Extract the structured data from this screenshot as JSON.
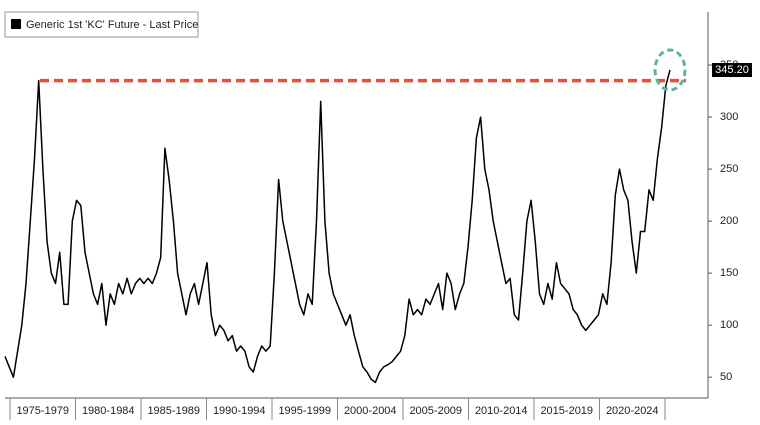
{
  "chart_data": {
    "type": "line",
    "legend": "Generic 1st 'KC' Future - Last Price",
    "period_labels": [
      "1975-1979",
      "1980-1984",
      "1985-1989",
      "1990-1994",
      "1995-1999",
      "2000-2004",
      "2005-2009",
      "2010-2014",
      "2015-2019",
      "2020-2024"
    ],
    "color": "#000000",
    "values": [
      70,
      60,
      50,
      75,
      100,
      140,
      200,
      260,
      335,
      250,
      180,
      150,
      140,
      170,
      120,
      120,
      200,
      220,
      215,
      170,
      150,
      130,
      120,
      140,
      100,
      130,
      120,
      140,
      130,
      145,
      130,
      140,
      145,
      140,
      145,
      140,
      150,
      165,
      270,
      240,
      200,
      150,
      130,
      110,
      130,
      140,
      120,
      140,
      160,
      110,
      90,
      100,
      95,
      85,
      90,
      75,
      80,
      75,
      60,
      55,
      70,
      80,
      75,
      80,
      150,
      240,
      200,
      180,
      160,
      140,
      120,
      110,
      130,
      120,
      200,
      315,
      200,
      150,
      130,
      120,
      110,
      100,
      110,
      90,
      75,
      60,
      55,
      48,
      45,
      55,
      60,
      62,
      65,
      70,
      75,
      90,
      125,
      110,
      115,
      110,
      125,
      120,
      130,
      140,
      115,
      150,
      140,
      115,
      130,
      140,
      175,
      220,
      280,
      300,
      250,
      230,
      200,
      180,
      160,
      140,
      145,
      110,
      105,
      150,
      200,
      220,
      180,
      130,
      120,
      140,
      125,
      160,
      140,
      135,
      130,
      115,
      110,
      100,
      95,
      100,
      105,
      110,
      130,
      120,
      160,
      225,
      250,
      230,
      220,
      180,
      150,
      190,
      190,
      230,
      220,
      260,
      290,
      330,
      345.2
    ],
    "last_price": {
      "value": 345.2,
      "label": "345.20"
    },
    "reference_line": 335,
    "reference_color": "#e8503a",
    "highlight_color": "#5fb3a3",
    "ylim": [
      30,
      400
    ],
    "yticks": [
      50,
      100,
      150,
      200,
      250,
      300,
      350
    ]
  }
}
